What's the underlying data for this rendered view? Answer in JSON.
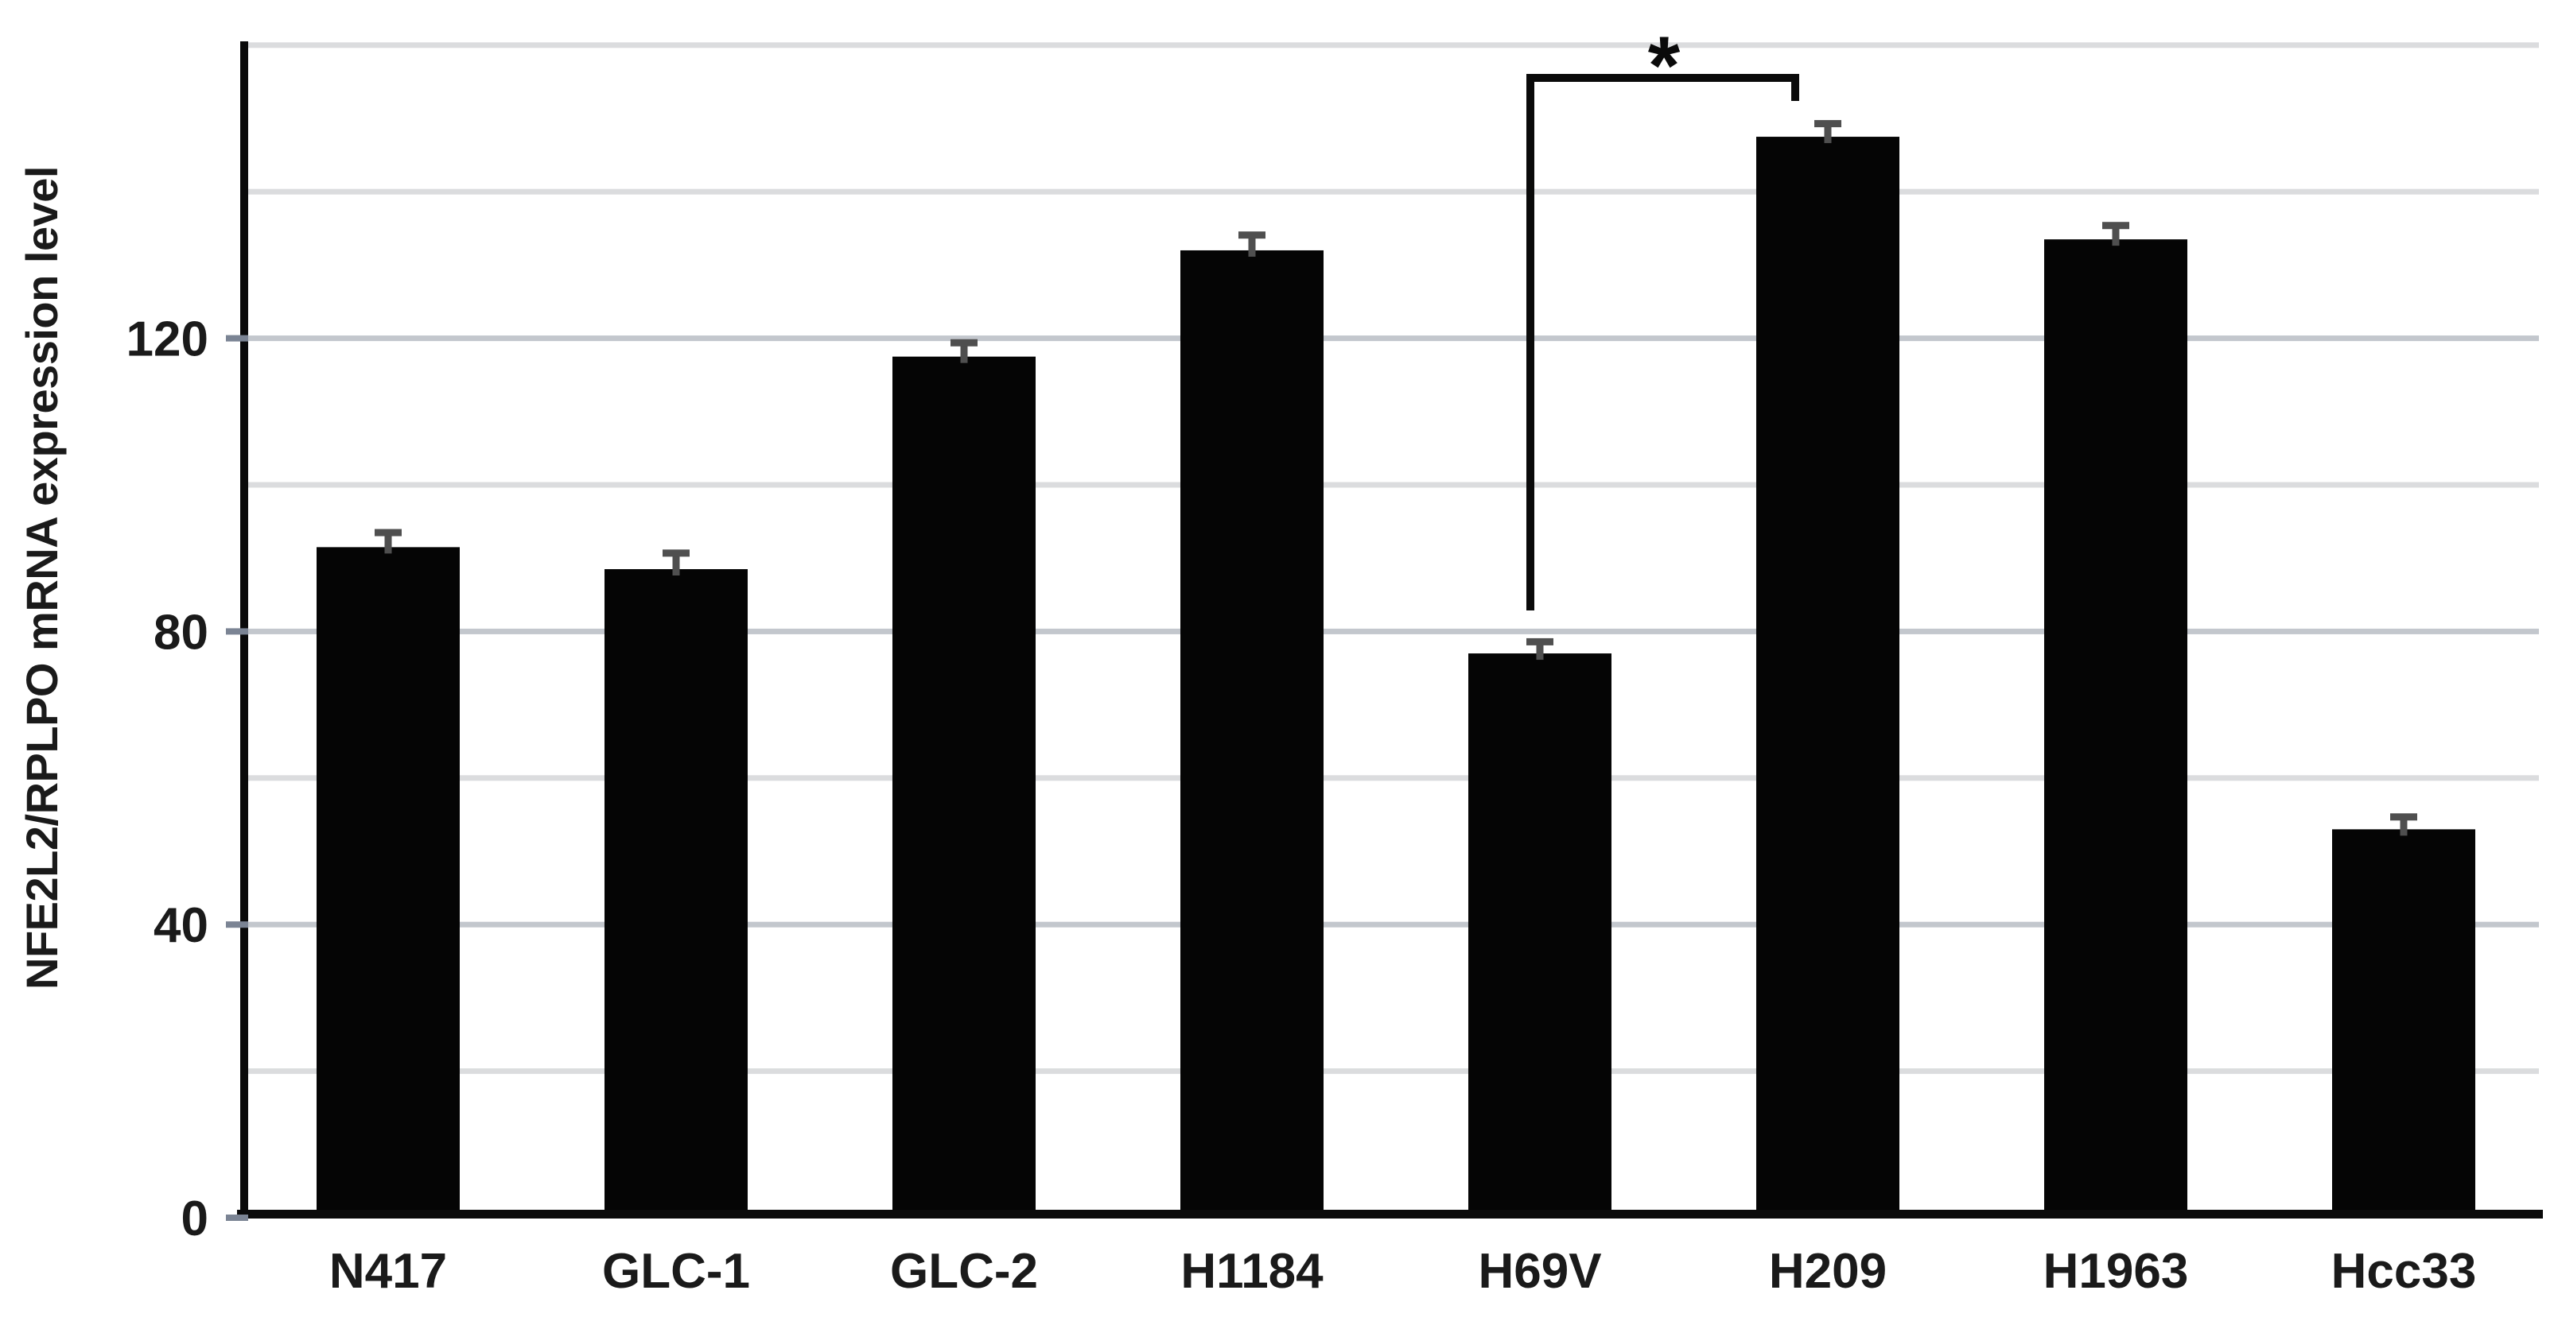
{
  "figure": {
    "background": "#ffffff"
  },
  "chart_data": {
    "type": "bar",
    "title": "",
    "xlabel": "",
    "ylabel": "NFE2L2/RPLPO mRNA expression level",
    "categories": [
      "N417",
      "GLC-1",
      "GLC-2",
      "H1184",
      "H69V",
      "H209",
      "H1963",
      "Hcc33"
    ],
    "values": [
      91.5,
      88.5,
      117.5,
      132,
      77,
      147.5,
      133.5,
      53
    ],
    "errors": [
      1.5,
      1.7,
      1.4,
      1.6,
      1.1,
      1.3,
      1.4,
      1.2
    ],
    "y_ticks": [
      0,
      40,
      80,
      120
    ],
    "ylim": [
      0,
      160
    ],
    "gridline_step": 20,
    "grid": true,
    "legend_position": "none",
    "bar_color": "#050505",
    "error_bar_color": "#4f4f4f",
    "axis_color": "#0a0a0a",
    "gridline_color_major": "#c3c7cd",
    "gridline_color_minor": "#dbdcde",
    "tick_mark_color": "#7b8494",
    "text_color": "#1a1a1a",
    "significance": {
      "label": "*",
      "between": [
        "H69V",
        "H209"
      ]
    }
  }
}
